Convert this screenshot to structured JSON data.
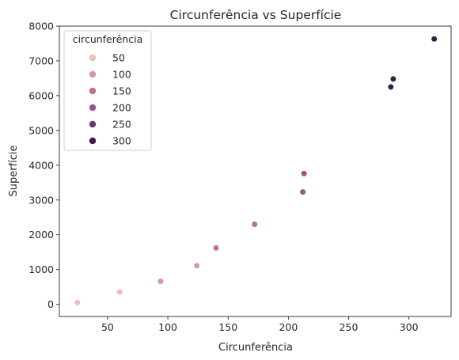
{
  "chart_data": {
    "type": "scatter",
    "title": "Circunferência vs Superfície",
    "xlabel": "Circunferência",
    "ylabel": "Superfície",
    "xlim": [
      10,
      335
    ],
    "ylim": [
      -350,
      8000
    ],
    "xticks": [
      50,
      100,
      150,
      200,
      250,
      300
    ],
    "yticks": [
      0,
      1000,
      2000,
      3000,
      4000,
      5000,
      6000,
      7000,
      8000
    ],
    "grid": false,
    "legend": {
      "title": "circunferência",
      "placement": "top-left",
      "entries": [
        {
          "label": "50",
          "value": 50,
          "color": "#ecbfb7"
        },
        {
          "label": "100",
          "value": 100,
          "color": "#d39aa1"
        },
        {
          "label": "150",
          "value": 150,
          "color": "#bb7391"
        },
        {
          "label": "200",
          "value": 200,
          "color": "#9b5489"
        },
        {
          "label": "250",
          "value": 250,
          "color": "#6c3a70"
        },
        {
          "label": "300",
          "value": 300,
          "color": "#3a1f45"
        }
      ]
    },
    "points": [
      {
        "x": 25,
        "y": 50
      },
      {
        "x": 60,
        "y": 350
      },
      {
        "x": 94,
        "y": 660
      },
      {
        "x": 124,
        "y": 1110
      },
      {
        "x": 140,
        "y": 1620
      },
      {
        "x": 172,
        "y": 2300
      },
      {
        "x": 212,
        "y": 3230
      },
      {
        "x": 213,
        "y": 3760
      },
      {
        "x": 285,
        "y": 6250
      },
      {
        "x": 287,
        "y": 6480
      },
      {
        "x": 321,
        "y": 7630
      }
    ]
  }
}
